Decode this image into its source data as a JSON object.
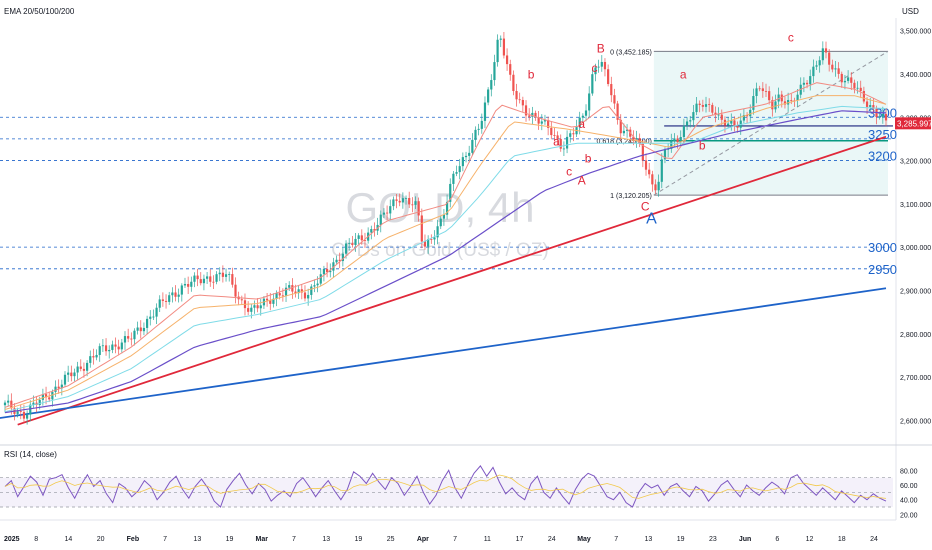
{
  "header": {
    "indicator_label": "EMA 20/50/100/200",
    "currency": "USD",
    "rsi_label": "RSI (14, close)"
  },
  "watermark": {
    "title": "GOLD, 4h",
    "subtitle": "CFDs on Gold (US$ / OZ)"
  },
  "colors": {
    "up": "#26a69a",
    "down": "#ef5350",
    "ema20": "#f28b82",
    "ema50": "#f6b26b",
    "ema100": "#7fdbe8",
    "ema200": "#6a4fc9",
    "trend_red": "#e0283a",
    "trend_blue": "#1e63c9",
    "rsi": "#7e57c2",
    "fib_fill": "#e3f4f4"
  },
  "chart_data": [
    {
      "type": "candlestick",
      "title": "GOLD, 4h",
      "ylim": [
        2550,
        3520
      ],
      "y_ticks": [
        "3,500.000",
        "3,400.000",
        "3,300.000",
        "3,200.000",
        "3,100.000",
        "3,000.000",
        "2,900.000",
        "2,800.000",
        "2,700.000",
        "2,600.000"
      ],
      "y_tick_values": [
        3500,
        3400,
        3300,
        3200,
        3100,
        3000,
        2900,
        2800,
        2700,
        2600
      ],
      "x_ticks": [
        "2025",
        "8",
        "14",
        "20",
        "Feb",
        "7",
        "13",
        "19",
        "Mar",
        "7",
        "13",
        "19",
        "25",
        "Apr",
        "7",
        "11",
        "17",
        "24",
        "May",
        "7",
        "13",
        "19",
        "23",
        "Jun",
        "6",
        "12",
        "18",
        "24"
      ],
      "last_price": "3,285.997",
      "price_path": [
        [
          0,
          2635
        ],
        [
          3,
          2615
        ],
        [
          6,
          2650
        ],
        [
          10,
          2700
        ],
        [
          15,
          2760
        ],
        [
          20,
          2790
        ],
        [
          24,
          2860
        ],
        [
          28,
          2910
        ],
        [
          32,
          2930
        ],
        [
          35,
          2935
        ],
        [
          37,
          2880
        ],
        [
          39,
          2850
        ],
        [
          42,
          2885
        ],
        [
          45,
          2900
        ],
        [
          48,
          2895
        ],
        [
          51,
          2950
        ],
        [
          54,
          3000
        ],
        [
          57,
          3030
        ],
        [
          59,
          3055
        ],
        [
          62,
          3120
        ],
        [
          65,
          3090
        ],
        [
          66,
          3000
        ],
        [
          69,
          3060
        ],
        [
          71,
          3180
        ],
        [
          73,
          3220
        ],
        [
          75,
          3280
        ],
        [
          76,
          3345
        ],
        [
          77,
          3420
        ],
        [
          78,
          3495
        ],
        [
          80,
          3365
        ],
        [
          82,
          3320
        ],
        [
          84,
          3290
        ],
        [
          86,
          3275
        ],
        [
          88,
          3230
        ],
        [
          90,
          3270
        ],
        [
          91,
          3300
        ],
        [
          92,
          3345
        ],
        [
          93,
          3420
        ],
        [
          94,
          3420
        ],
        [
          95,
          3390
        ],
        [
          97,
          3280
        ],
        [
          100,
          3235
        ],
        [
          102,
          3150
        ],
        [
          103,
          3140
        ],
        [
          104,
          3220
        ],
        [
          106,
          3250
        ],
        [
          108,
          3300
        ],
        [
          110,
          3330
        ],
        [
          112,
          3320
        ],
        [
          113,
          3290
        ],
        [
          115,
          3275
        ],
        [
          117,
          3310
        ],
        [
          119,
          3370
        ],
        [
          121,
          3330
        ],
        [
          122,
          3350
        ],
        [
          124,
          3325
        ],
        [
          126,
          3380
        ],
        [
          128,
          3420
        ],
        [
          129,
          3450
        ],
        [
          130,
          3425
        ],
        [
          132,
          3395
        ],
        [
          134,
          3370
        ],
        [
          135,
          3350
        ],
        [
          137,
          3320
        ],
        [
          139,
          3286
        ]
      ],
      "emas": [
        {
          "name": "EMA 20",
          "path": [
            [
              0,
              2630
            ],
            [
              10,
              2680
            ],
            [
              20,
              2770
            ],
            [
              30,
              2890
            ],
            [
              40,
              2880
            ],
            [
              50,
              2930
            ],
            [
              60,
              3060
            ],
            [
              70,
              3100
            ],
            [
              75,
              3250
            ],
            [
              78,
              3330
            ],
            [
              85,
              3295
            ],
            [
              90,
              3275
            ],
            [
              95,
              3330
            ],
            [
              100,
              3240
            ],
            [
              105,
              3200
            ],
            [
              110,
              3300
            ],
            [
              120,
              3330
            ],
            [
              128,
              3380
            ],
            [
              134,
              3365
            ],
            [
              139,
              3330
            ]
          ]
        },
        {
          "name": "EMA 50",
          "path": [
            [
              0,
              2625
            ],
            [
              10,
              2670
            ],
            [
              20,
              2750
            ],
            [
              30,
              2860
            ],
            [
              40,
              2870
            ],
            [
              50,
              2910
            ],
            [
              60,
              3020
            ],
            [
              70,
              3080
            ],
            [
              75,
              3190
            ],
            [
              80,
              3290
            ],
            [
              90,
              3270
            ],
            [
              100,
              3245
            ],
            [
              105,
              3230
            ],
            [
              110,
              3270
            ],
            [
              120,
              3320
            ],
            [
              128,
              3350
            ],
            [
              134,
              3350
            ],
            [
              139,
              3330
            ]
          ]
        },
        {
          "name": "EMA 100",
          "path": [
            [
              0,
              2620
            ],
            [
              10,
              2655
            ],
            [
              20,
              2720
            ],
            [
              30,
              2820
            ],
            [
              40,
              2845
            ],
            [
              50,
              2880
            ],
            [
              60,
              2970
            ],
            [
              70,
              3040
            ],
            [
              75,
              3120
            ],
            [
              80,
              3210
            ],
            [
              90,
              3240
            ],
            [
              100,
              3240
            ],
            [
              108,
              3240
            ],
            [
              115,
              3280
            ],
            [
              125,
              3310
            ],
            [
              132,
              3325
            ],
            [
              139,
              3320
            ]
          ]
        },
        {
          "name": "EMA 200",
          "path": [
            [
              0,
              2618
            ],
            [
              10,
              2640
            ],
            [
              20,
              2690
            ],
            [
              30,
              2770
            ],
            [
              40,
              2810
            ],
            [
              50,
              2840
            ],
            [
              60,
              2910
            ],
            [
              70,
              2980
            ],
            [
              78,
              3060
            ],
            [
              85,
              3130
            ],
            [
              92,
              3170
            ],
            [
              100,
              3210
            ],
            [
              108,
              3240
            ],
            [
              115,
              3265
            ],
            [
              125,
              3295
            ],
            [
              132,
              3315
            ],
            [
              139,
              3310
            ]
          ]
        }
      ],
      "horizontal_levels": [
        {
          "label": "3300",
          "value": 3300
        },
        {
          "label": "3250",
          "value": 3250
        },
        {
          "label": "3200",
          "value": 3200
        },
        {
          "label": "3000",
          "value": 3000
        },
        {
          "label": "2950",
          "value": 2950
        }
      ],
      "trendlines": [
        {
          "name": "red-trendline",
          "from": [
            2,
            2590
          ],
          "to": [
            139,
            3255
          ]
        },
        {
          "name": "blue-trendline",
          "from": [
            -1,
            2605
          ],
          "to": [
            139,
            2905
          ]
        }
      ],
      "fib": {
        "high_label": "0 (3,452.185)",
        "mid_label": "0.618 (3,245.800)",
        "low_label": "1 (3,120.205)",
        "high": 3452.185,
        "mid": 3245.8,
        "low": 3120.205,
        "x_start": 103,
        "x_end": 139
      },
      "wave_labels": [
        {
          "text": "b",
          "x": 83,
          "y": 3390,
          "size": "small"
        },
        {
          "text": "a",
          "x": 87,
          "y": 3235,
          "size": "small"
        },
        {
          "text": "B",
          "x": 94,
          "y": 3450,
          "size": "small"
        },
        {
          "text": "c",
          "x": 93,
          "y": 3405,
          "size": "small"
        },
        {
          "text": "a",
          "x": 91,
          "y": 3275,
          "size": "small"
        },
        {
          "text": "c",
          "x": 89,
          "y": 3165,
          "size": "small"
        },
        {
          "text": "b",
          "x": 92,
          "y": 3195,
          "size": "small"
        },
        {
          "text": "A",
          "x": 91,
          "y": 3145,
          "size": "small"
        },
        {
          "text": "C",
          "x": 101,
          "y": 3085,
          "size": "small"
        },
        {
          "text": "A",
          "x": 102,
          "y": 3055,
          "size": "big"
        },
        {
          "text": "a",
          "x": 107,
          "y": 3390,
          "size": "small"
        },
        {
          "text": "b",
          "x": 110,
          "y": 3225,
          "size": "small"
        },
        {
          "text": "c",
          "x": 124,
          "y": 3475,
          "size": "small"
        }
      ]
    },
    {
      "type": "line",
      "title": "RSI (14, close)",
      "ylim": [
        15,
        90
      ],
      "y_ticks": [
        "80.00",
        "60.00",
        "40.00",
        "20.00"
      ],
      "y_tick_values": [
        80,
        60,
        40,
        20
      ],
      "guides": [
        70,
        50,
        30
      ],
      "series": [
        {
          "name": "RSI",
          "values": [
            58,
            66,
            44,
            58,
            72,
            64,
            46,
            68,
            70,
            74,
            56,
            42,
            60,
            74,
            58,
            66,
            48,
            36,
            62,
            56,
            44,
            52,
            66,
            58,
            40,
            50,
            64,
            72,
            54,
            42,
            58,
            68,
            56,
            38,
            30,
            54,
            66,
            76,
            60,
            48,
            62,
            54,
            38,
            46,
            52,
            44,
            62,
            70,
            58,
            44,
            56,
            66,
            52,
            40,
            54,
            78,
            72,
            62,
            76,
            64,
            54,
            70,
            62,
            46,
            58,
            72,
            50,
            34,
            46,
            66,
            80,
            56,
            42,
            60,
            76,
            86,
            72,
            84,
            64,
            48,
            56,
            46,
            40,
            62,
            72,
            50,
            42,
            56,
            44,
            34,
            54,
            68,
            76,
            72,
            58,
            44,
            40,
            50,
            36,
            30,
            50,
            62,
            56,
            60,
            46,
            58,
            62,
            52,
            44,
            58,
            52,
            38,
            48,
            60,
            66,
            54,
            44,
            60,
            52,
            46,
            56,
            64,
            58,
            48,
            70,
            74,
            62,
            54,
            46,
            56,
            48,
            40,
            52,
            44,
            36,
            46,
            40,
            48,
            42,
            38
          ]
        }
      ]
    }
  ]
}
